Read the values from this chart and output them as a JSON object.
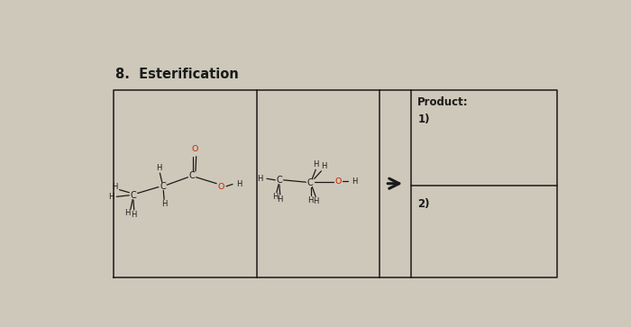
{
  "title": "8.  Esterification",
  "title_fontsize": 10.5,
  "title_fontweight": "bold",
  "paper_color": "#cec8ba",
  "black": "#1a1a1a",
  "red": "#cc2200",
  "product_label": "Product:",
  "item1": "1)",
  "item2": "2)",
  "TL": 0.5,
  "TR": 6.85,
  "TB": 0.2,
  "TT": 2.9,
  "div1": 2.55,
  "div2": 4.3,
  "div3": 4.75,
  "hdiv": 1.52
}
